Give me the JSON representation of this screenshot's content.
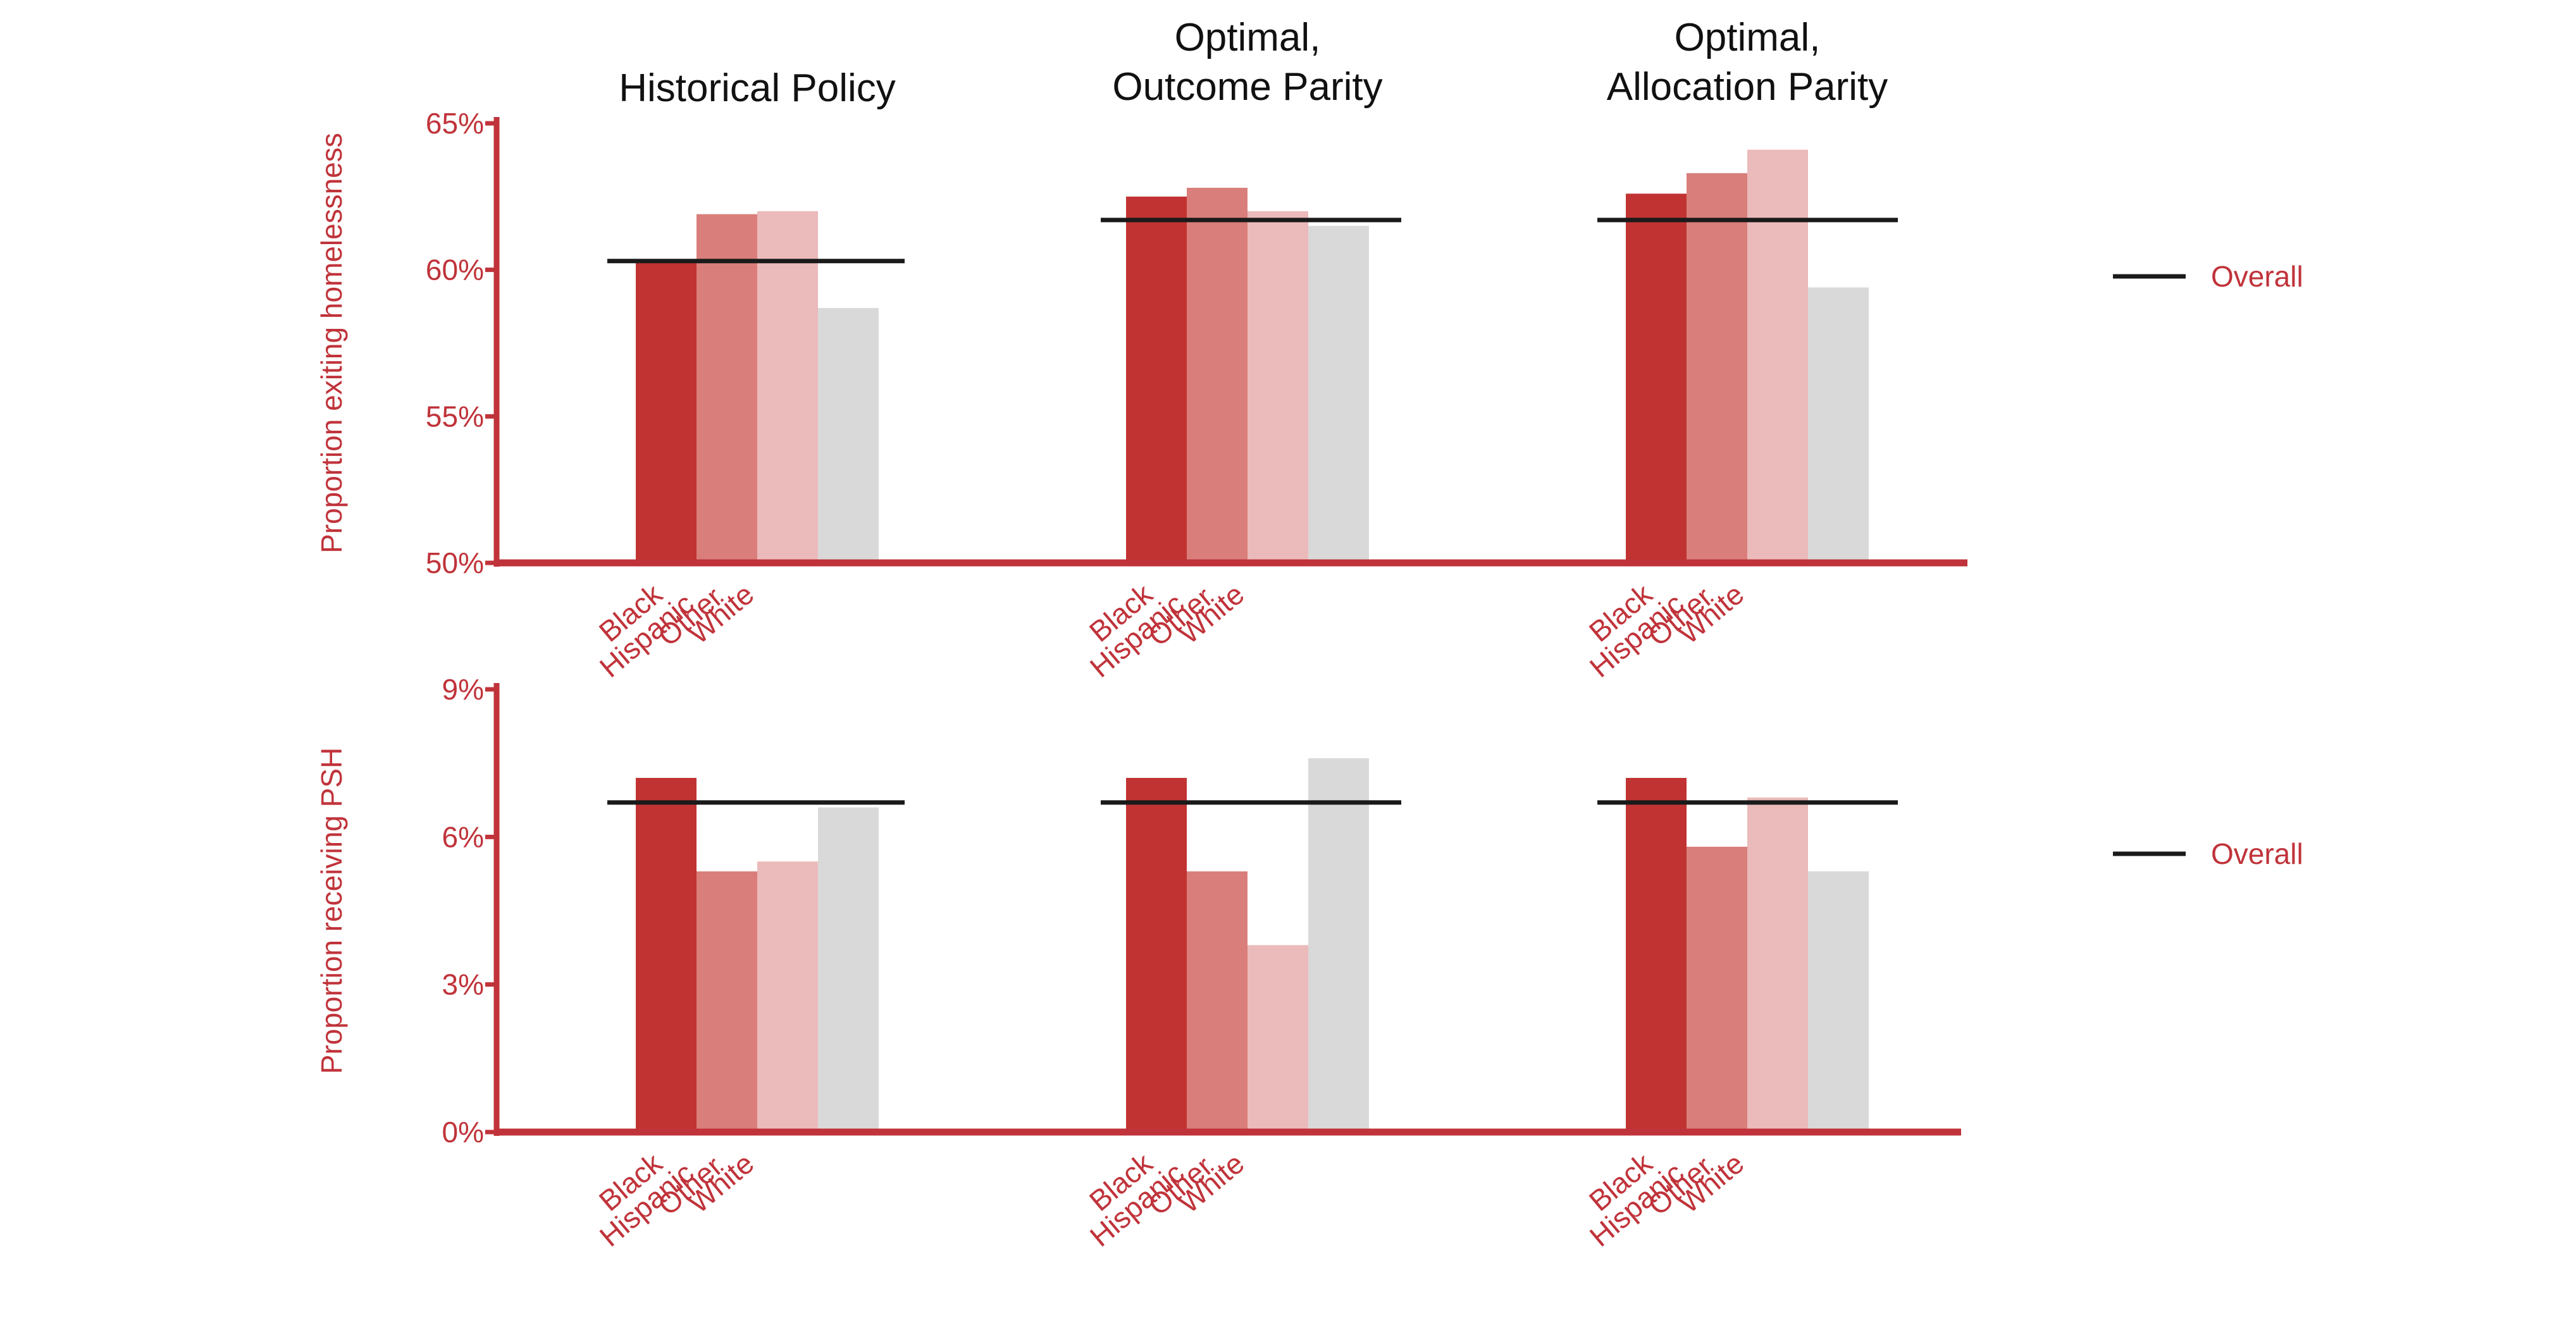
{
  "legend": {
    "label": "Overall"
  },
  "colors": {
    "axis": "#c0333a",
    "overall_line": "#1a1a1a",
    "label_text": "#c0333a",
    "title_text": "#111111",
    "Black": "#c13333",
    "Hispanic": "#d97e7a",
    "Other": "#ebbaba",
    "White": "#d9d9d9"
  },
  "chart_data": [
    {
      "type": "bar",
      "ylabel": "Proportion exiting homelessness",
      "ylim": [
        50,
        65
      ],
      "yticks": [
        50,
        55,
        60,
        65
      ],
      "ytick_labels": [
        "50%",
        "55%",
        "60%",
        "65%"
      ],
      "categories": [
        "Black",
        "Hispanic",
        "Other",
        "White"
      ],
      "legend_position": "right",
      "groups": [
        {
          "title": "Historical Policy",
          "values": [
            60.3,
            61.9,
            62.0,
            58.7
          ],
          "overall": 60.3
        },
        {
          "title": "Optimal,\nOutcome Parity",
          "values": [
            62.5,
            62.8,
            62.0,
            61.5
          ],
          "overall": 61.7
        },
        {
          "title": "Optimal,\nAllocation Parity",
          "values": [
            62.6,
            63.3,
            64.1,
            59.4
          ],
          "overall": 61.7
        }
      ]
    },
    {
      "type": "bar",
      "ylabel": "Proportion receiving PSH",
      "ylim": [
        0,
        9
      ],
      "yticks": [
        0,
        3,
        6,
        9
      ],
      "ytick_labels": [
        "0%",
        "3%",
        "6%",
        "9%"
      ],
      "categories": [
        "Black",
        "Hispanic",
        "Other",
        "White"
      ],
      "legend_position": "right",
      "groups": [
        {
          "title": "",
          "values": [
            7.2,
            5.3,
            5.5,
            6.6
          ],
          "overall": 6.7
        },
        {
          "title": "",
          "values": [
            7.2,
            5.3,
            3.8,
            7.6
          ],
          "overall": 6.7
        },
        {
          "title": "",
          "values": [
            7.2,
            5.8,
            6.8,
            5.3
          ],
          "overall": 6.7
        }
      ]
    }
  ]
}
